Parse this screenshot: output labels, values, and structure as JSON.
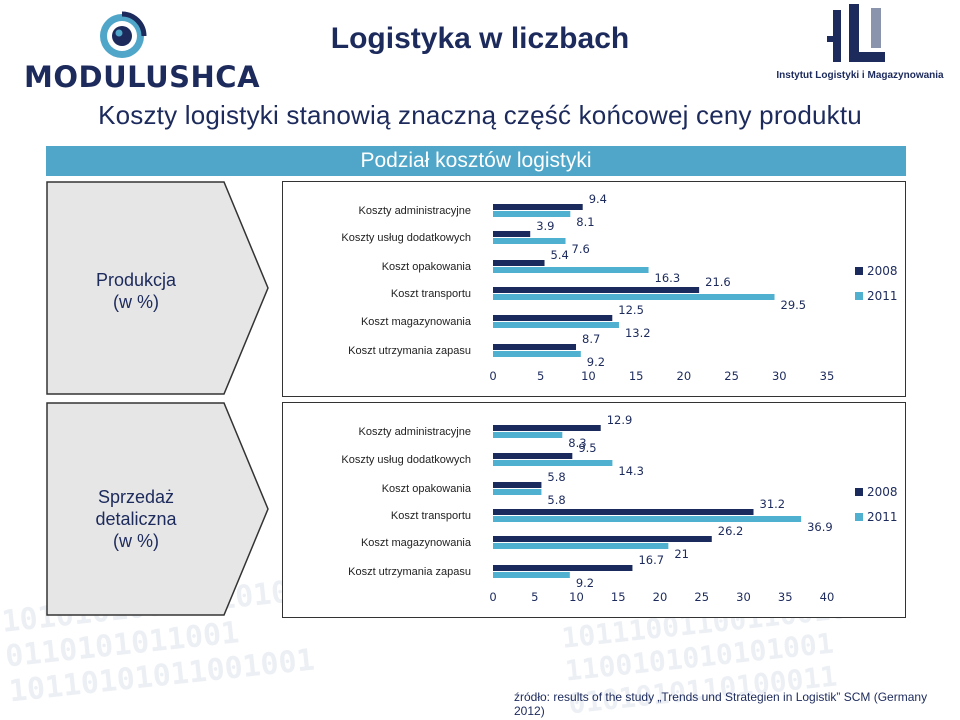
{
  "header": {
    "title": "Logistyka w liczbach",
    "logo_left_text": "MODULUSHCA",
    "logo_right_text": "Instytut Logistyki i Magazynowania"
  },
  "subtitle": "Koszty logistyki stanowią znaczną część końcowej ceny produktu",
  "section_title": "Podział kosztów logistyki",
  "panels": [
    {
      "label": [
        "Produkcja",
        "(w %)"
      ]
    },
    {
      "label": [
        "Sprzedaż",
        "detaliczna",
        "(w %)"
      ]
    }
  ],
  "source_note": "źródło: results of the study „Trends und Strategien in Logistik” SCM (Germany 2012)",
  "colors": {
    "series_2008": "#1b2a5c",
    "series_2011": "#4fb0cf",
    "accent": "#4fa6c8",
    "text": "#1c2a5c"
  },
  "chart_data": [
    {
      "type": "bar",
      "orientation": "horizontal",
      "categories": [
        "Koszty administracyjne",
        "Koszty usług dodatkowych",
        "Koszt opakowania",
        "Koszt transportu",
        "Koszt magazynowania",
        "Koszt utrzymania zapasu"
      ],
      "series": [
        {
          "name": "2008",
          "values": [
            9.4,
            3.9,
            5.4,
            21.6,
            12.5,
            8.7
          ]
        },
        {
          "name": "2011",
          "values": [
            8.1,
            7.6,
            16.3,
            29.5,
            13.2,
            9.2
          ]
        }
      ],
      "xlim": [
        0,
        35
      ],
      "xticks": [
        "0",
        "5",
        "10",
        "15",
        "20",
        "25",
        "30",
        "35"
      ],
      "legend_position": "right"
    },
    {
      "type": "bar",
      "orientation": "horizontal",
      "categories": [
        "Koszty administracyjne",
        "Koszty usług dodatkowych",
        "Koszt opakowania",
        "Koszt transportu",
        "Koszt magazynowania",
        "Koszt utrzymania zapasu"
      ],
      "series": [
        {
          "name": "2008",
          "values": [
            12.9,
            9.5,
            5.8,
            31.2,
            26.2,
            16.7
          ]
        },
        {
          "name": "2011",
          "values": [
            8.3,
            14.3,
            5.8,
            36.9,
            21,
            9.2
          ]
        }
      ],
      "xlim": [
        0,
        40
      ],
      "xticks": [
        "0",
        "5",
        "10",
        "15",
        "20",
        "25",
        "30",
        "35",
        "40"
      ],
      "legend_position": "right"
    }
  ]
}
